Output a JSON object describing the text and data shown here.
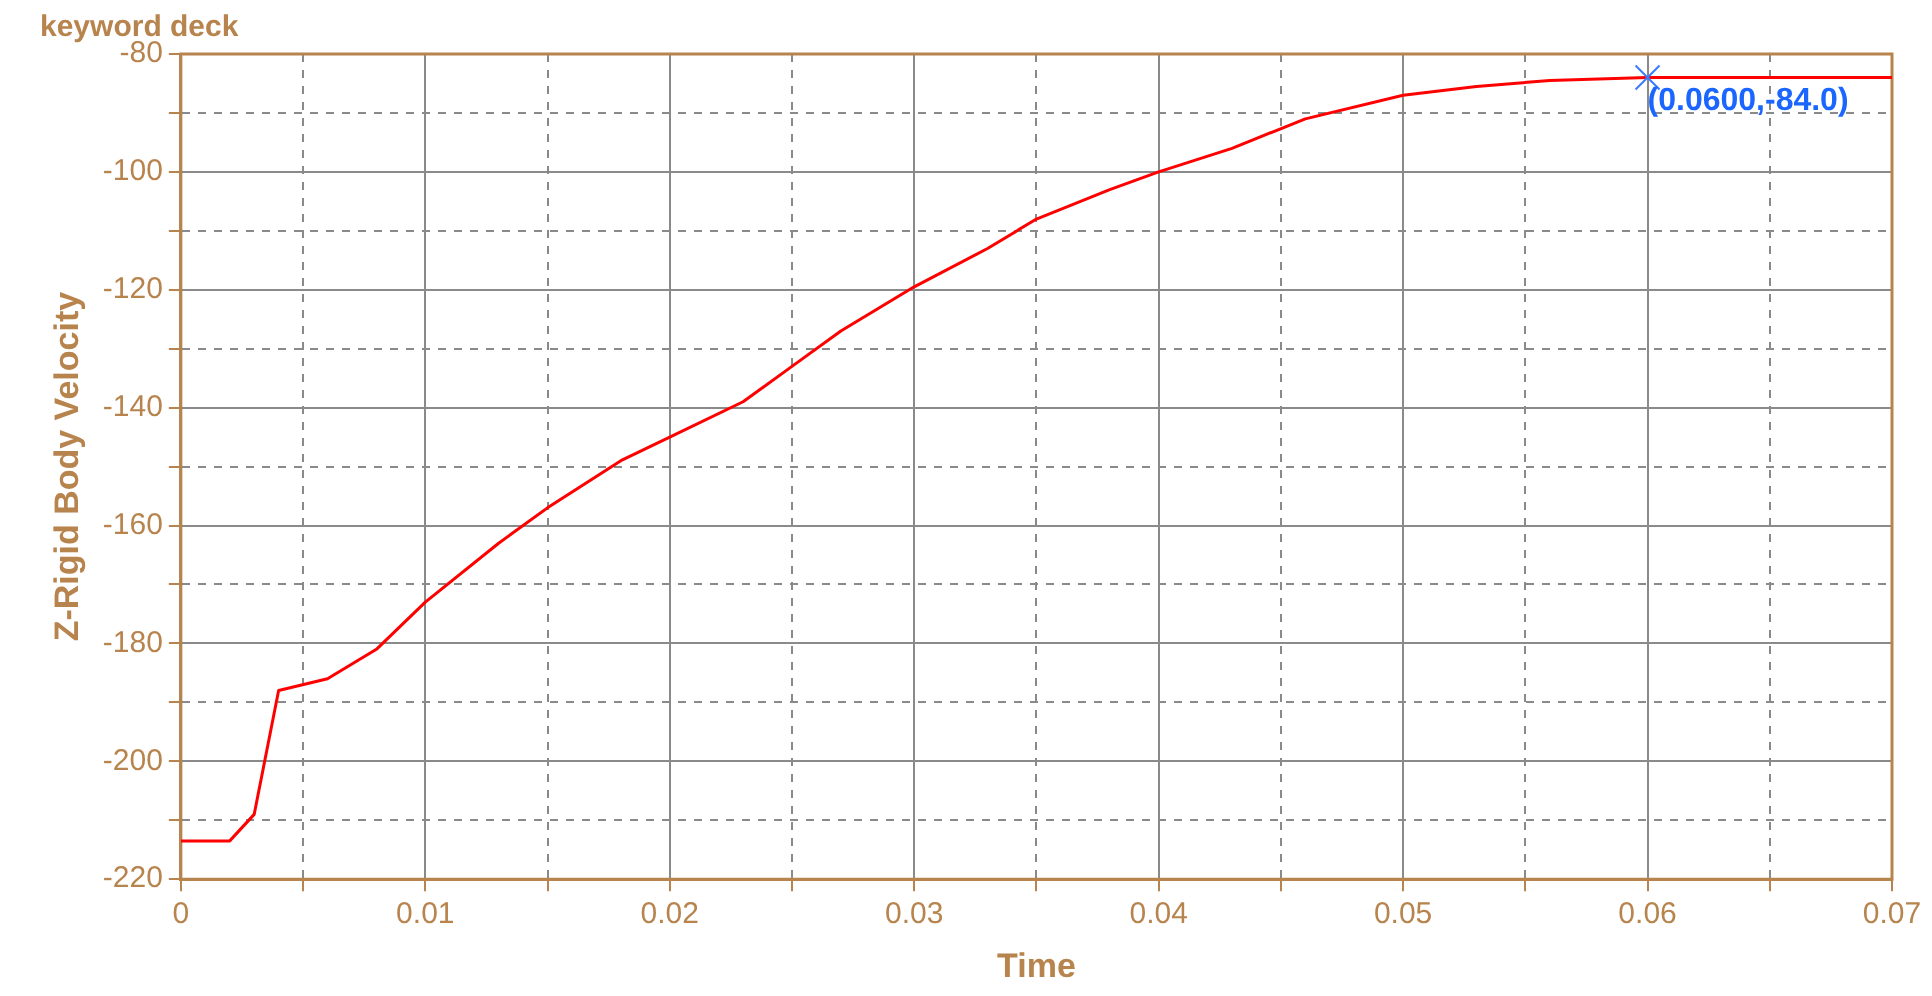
{
  "chart_data": {
    "type": "line",
    "title": "keyword deck",
    "xlabel": "Time",
    "ylabel": "Z-Rigid Body Velocity",
    "x": [
      0,
      0.002,
      0.003,
      0.004,
      0.006,
      0.008,
      0.01,
      0.013,
      0.015,
      0.018,
      0.02,
      0.023,
      0.025,
      0.027,
      0.03,
      0.033,
      0.035,
      0.038,
      0.04,
      0.043,
      0.046,
      0.05,
      0.053,
      0.056,
      0.06,
      0.07
    ],
    "series": [
      {
        "color": "#ff0000",
        "values": [
          -213.5,
          -213.5,
          -209,
          -188,
          -186,
          -181,
          -173,
          -163,
          -157,
          -149,
          -145,
          -139,
          -133,
          -127,
          -119.5,
          -113,
          -108,
          -103,
          -100,
          -96,
          -91,
          -87,
          -85.5,
          -84.5,
          -84,
          -84
        ]
      }
    ],
    "xlim": [
      0,
      0.07
    ],
    "ylim": [
      -220,
      -80
    ],
    "xticks": [
      0,
      {
        "value": 0.005,
        "label": null
      },
      0.01,
      {
        "value": 0.015,
        "label": null
      },
      0.02,
      {
        "value": 0.025,
        "label": null
      },
      0.03,
      {
        "value": 0.035,
        "label": null
      },
      0.04,
      {
        "value": 0.045,
        "label": null
      },
      0.05,
      {
        "value": 0.055,
        "label": null
      },
      0.06,
      {
        "value": 0.065,
        "label": null
      },
      0.07
    ],
    "yticks": [
      -220,
      {
        "value": -210,
        "label": null
      },
      -200,
      {
        "value": -190,
        "label": null
      },
      -180,
      {
        "value": -170,
        "label": null
      },
      -160,
      {
        "value": -150,
        "label": null
      },
      -140,
      {
        "value": -130,
        "label": null
      },
      -120,
      {
        "value": -110,
        "label": null
      },
      -100,
      {
        "value": -90,
        "label": null
      },
      -80
    ],
    "grid": true,
    "legend": false,
    "marker": "none",
    "line_style": "solid",
    "annotations": [
      {
        "text": "(0.0600,-84.0)",
        "x": 0.06,
        "y": -84
      }
    ]
  }
}
